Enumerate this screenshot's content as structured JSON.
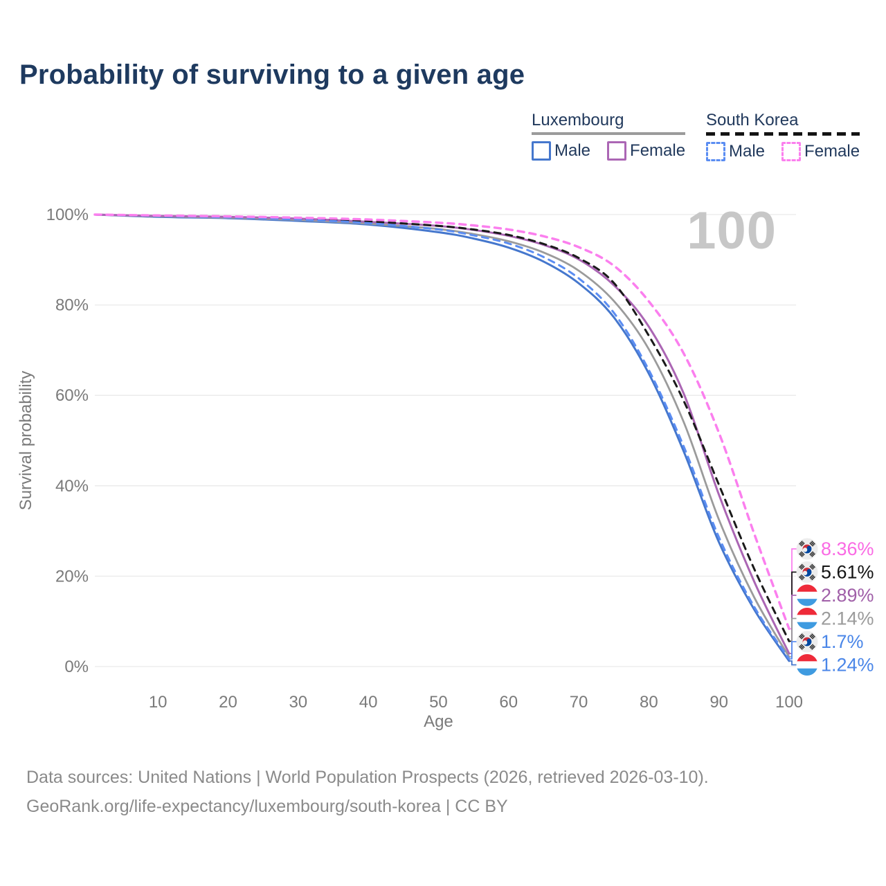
{
  "title": "Probability of surviving to a given age",
  "watermark": "100",
  "legend": {
    "groups": [
      {
        "label": "Luxembourg",
        "line_style": "solid",
        "underline_color": "#9b9b9b",
        "items": [
          {
            "label": "Male",
            "color": "#4577cd",
            "dashed": false
          },
          {
            "label": "Female",
            "color": "#ab66b4",
            "dashed": false
          }
        ]
      },
      {
        "label": "South Korea",
        "line_style": "dashed",
        "underline_color": "#141414",
        "items": [
          {
            "label": "Male",
            "color": "#5b8df2",
            "dashed": true
          },
          {
            "label": "Female",
            "color": "#fb7fee",
            "dashed": true
          }
        ]
      }
    ]
  },
  "chart_data": {
    "type": "line",
    "title": "Probability of surviving to a given age",
    "xlabel": "Age",
    "ylabel": "Survival probability",
    "xlim": [
      1,
      100
    ],
    "ylim": [
      0,
      100
    ],
    "grid": "horizontal",
    "x_ticks": [
      10,
      20,
      30,
      40,
      50,
      60,
      70,
      80,
      90,
      100
    ],
    "y_ticks": [
      {
        "value": 0,
        "label": "0%"
      },
      {
        "value": 20,
        "label": "20%"
      },
      {
        "value": 40,
        "label": "40%"
      },
      {
        "value": 60,
        "label": "60%"
      },
      {
        "value": 80,
        "label": "80%"
      },
      {
        "value": 100,
        "label": "100%"
      }
    ],
    "x": [
      1,
      10,
      20,
      30,
      40,
      50,
      55,
      60,
      65,
      70,
      75,
      80,
      85,
      90,
      95,
      100
    ],
    "series": [
      {
        "name": "Luxembourg Male",
        "country": "Luxembourg",
        "sex": "Male",
        "flag": "lu",
        "color": "#4577cd",
        "dashed": false,
        "width": 3,
        "values": [
          100,
          99.5,
          99.2,
          98.6,
          97.8,
          96.1,
          94.7,
          92.7,
          89.6,
          84.8,
          77.3,
          64.8,
          47.5,
          27.5,
          12.7,
          1.24
        ],
        "end_label": "1.24%",
        "label_color": "#4a86e8"
      },
      {
        "name": "Luxembourg Total",
        "country": "Luxembourg",
        "sex": "Both",
        "flag": "lu",
        "color": "#9b9b9b",
        "dashed": false,
        "width": 2.8,
        "values": [
          100,
          99.6,
          99.3,
          98.8,
          98.0,
          96.8,
          95.7,
          94.1,
          91.6,
          87.6,
          80.9,
          70.2,
          54.0,
          32.5,
          15.4,
          2.14
        ],
        "end_label": "2.14%",
        "label_color": "#9b9b9b"
      },
      {
        "name": "Luxembourg Female",
        "country": "Luxembourg",
        "sex": "Female",
        "flag": "lu",
        "color": "#ab66b4",
        "dashed": false,
        "width": 3,
        "values": [
          100,
          99.7,
          99.5,
          99.1,
          98.4,
          97.5,
          96.6,
          95.3,
          93.3,
          90.1,
          84.4,
          75.2,
          60.3,
          38.0,
          18.9,
          2.89
        ],
        "end_label": "2.89%",
        "label_color": "#a05fa8"
      },
      {
        "name": "South Korea Total",
        "country": "South Korea",
        "sex": "Both",
        "flag": "kr",
        "color": "#1a1a1a",
        "dashed": true,
        "width": 3,
        "values": [
          100,
          99.7,
          99.5,
          99.1,
          98.5,
          97.5,
          96.7,
          95.5,
          93.5,
          90.4,
          84.9,
          73.2,
          58.7,
          40.2,
          21.7,
          5.61
        ],
        "end_label": "5.61%",
        "label_color": "#141414"
      },
      {
        "name": "South Korea Male",
        "country": "South Korea",
        "sex": "Male",
        "flag": "kr",
        "color": "#5b8df2",
        "dashed": true,
        "width": 3,
        "values": [
          100,
          99.7,
          99.4,
          98.9,
          98.1,
          96.7,
          95.4,
          93.6,
          90.6,
          85.9,
          78.3,
          65.6,
          48.6,
          28.6,
          13.3,
          1.7
        ],
        "end_label": "1.7%",
        "label_color": "#4a86e8"
      },
      {
        "name": "South Korea Female",
        "country": "South Korea",
        "sex": "Female",
        "flag": "kr",
        "color": "#fb7fee",
        "dashed": true,
        "width": 3.5,
        "values": [
          100,
          99.8,
          99.6,
          99.3,
          98.9,
          98.2,
          97.6,
          96.7,
          95.2,
          92.8,
          88.7,
          80.8,
          69.2,
          51.7,
          29.5,
          8.36
        ],
        "end_label": "8.36%",
        "label_color": "#fa6ae4"
      }
    ]
  },
  "footer": {
    "line1": "Data sources: United Nations | World Population Prospects (2026, retrieved 2026-03-10).",
    "line2": "GeoRank.org/life-expectancy/luxembourg/south-korea | CC BY"
  }
}
